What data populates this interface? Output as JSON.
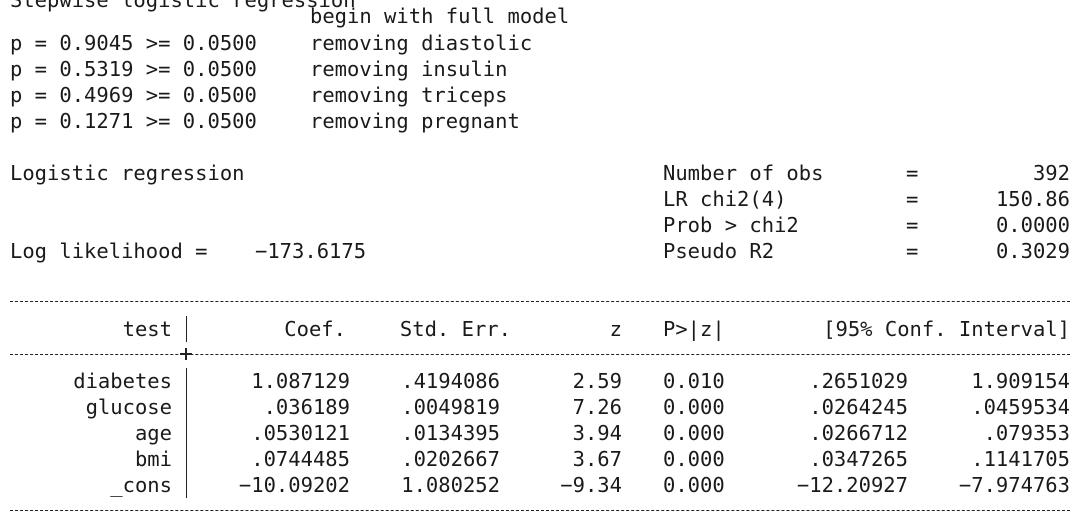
{
  "header": {
    "clipped_line": "Stepwise logistic regression",
    "begin": "begin with full model",
    "steps": [
      {
        "crit": "p = 0.9045 >= 0.0500",
        "action": "removing diastolic"
      },
      {
        "crit": "p = 0.5319 >= 0.0500",
        "action": "removing insulin"
      },
      {
        "crit": "p = 0.4969 >= 0.0500",
        "action": "removing triceps"
      },
      {
        "crit": "p = 0.1271 >= 0.0500",
        "action": "removing pregnant"
      }
    ]
  },
  "model": {
    "title": "Logistic regression",
    "loglik_label": "Log likelihood =",
    "loglik_value": "−173.6175",
    "stats": [
      {
        "label": "Number of obs",
        "eq": "=",
        "value": "392"
      },
      {
        "label": "LR chi2(4)",
        "eq": "=",
        "value": "150.86"
      },
      {
        "label": "Prob > chi2",
        "eq": "=",
        "value": "0.0000"
      },
      {
        "label": "Pseudo R2",
        "eq": "=",
        "value": "0.3029"
      }
    ]
  },
  "table": {
    "headers": {
      "var": "test",
      "coef": "Coef.",
      "se": "Std. Err.",
      "z": "z",
      "p": "P>|z|",
      "ci": "[95% Conf. Interval]"
    },
    "rows": [
      {
        "var": "diabetes",
        "coef": "1.087129",
        "se": ".4194086",
        "z": "2.59",
        "p": "0.010",
        "lo": ".2651029",
        "hi": "1.909154"
      },
      {
        "var": "glucose",
        "coef": ".036189",
        "se": ".0049819",
        "z": "7.26",
        "p": "0.000",
        "lo": ".0264245",
        "hi": ".0459534"
      },
      {
        "var": "age",
        "coef": ".0530121",
        "se": ".0134395",
        "z": "3.94",
        "p": "0.000",
        "lo": ".0266712",
        "hi": ".079353"
      },
      {
        "var": "bmi",
        "coef": ".0744485",
        "se": ".0202667",
        "z": "3.67",
        "p": "0.000",
        "lo": ".0347265",
        "hi": ".1141705"
      },
      {
        "var": "_cons",
        "coef": "−10.09202",
        "se": "1.080252",
        "z": "−9.34",
        "p": "0.000",
        "lo": "−12.20927",
        "hi": "−7.974763"
      }
    ]
  }
}
